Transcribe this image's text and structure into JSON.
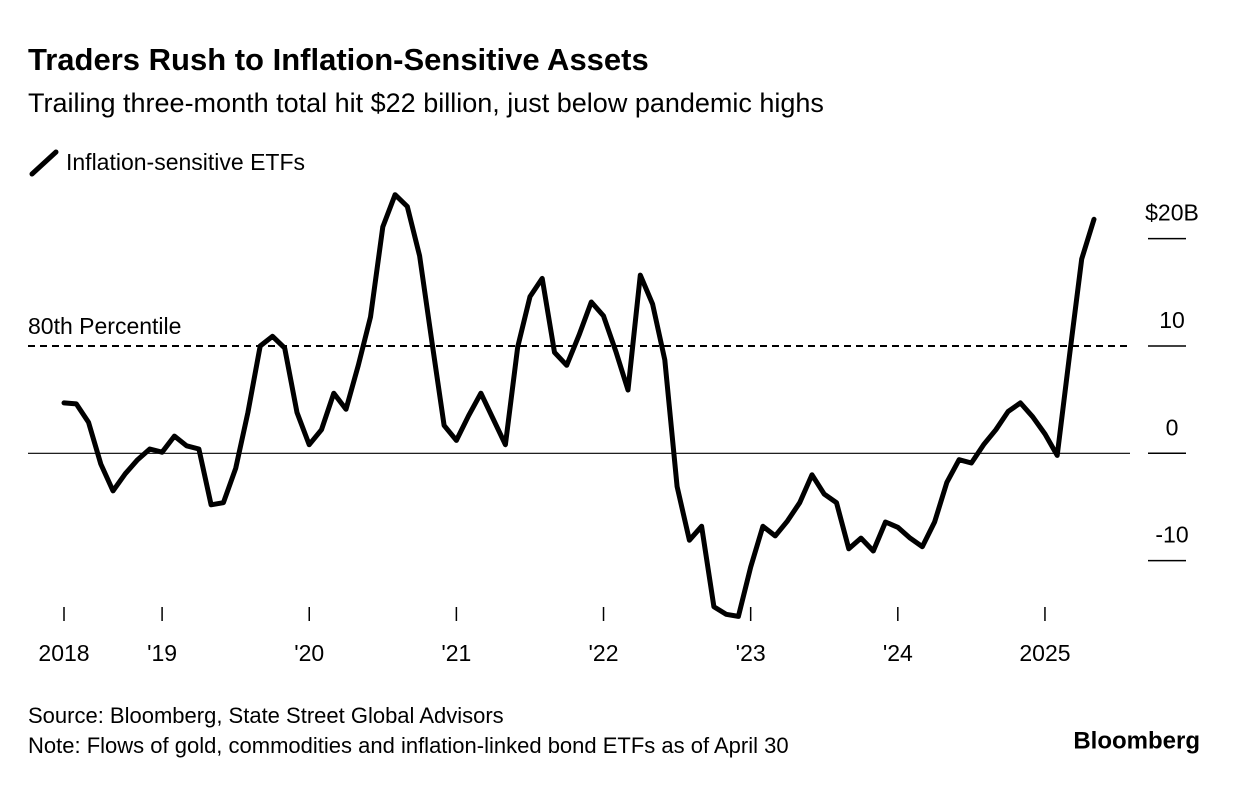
{
  "chart_data": {
    "type": "line",
    "title": "Traders Rush to Inflation-Sensitive Assets",
    "subtitle": "Trailing three-month total hit $22 billion, just below pandemic highs",
    "categories": [
      "2018",
      null,
      null,
      null,
      null,
      null,
      null,
      null,
      "'19",
      null,
      null,
      null,
      null,
      null,
      null,
      null,
      null,
      null,
      null,
      null,
      "'20",
      null,
      null,
      null,
      null,
      null,
      null,
      null,
      null,
      null,
      null,
      null,
      "'21",
      null,
      null,
      null,
      null,
      null,
      null,
      null,
      null,
      null,
      null,
      null,
      "'22",
      null,
      null,
      null,
      null,
      null,
      null,
      null,
      null,
      null,
      null,
      null,
      "'23",
      null,
      null,
      null,
      null,
      null,
      null,
      null,
      null,
      null,
      null,
      null,
      "'24",
      null,
      null,
      null,
      null,
      null,
      null,
      null,
      null,
      null,
      null,
      null,
      "2025",
      null,
      null,
      null,
      null
    ],
    "series": [
      {
        "name": "Inflation-sensitive ETFs",
        "color": "#000000",
        "values": [
          4.7,
          4.6,
          2.9,
          -1.0,
          -3.5,
          -1.9,
          -0.6,
          0.4,
          0.1,
          1.6,
          0.7,
          0.4,
          -4.8,
          -4.6,
          -1.4,
          3.8,
          10.0,
          10.9,
          9.8,
          3.8,
          0.8,
          2.2,
          5.6,
          4.1,
          8.2,
          12.7,
          21.1,
          24.1,
          23.0,
          18.4,
          10.4,
          2.6,
          1.2,
          3.5,
          5.6,
          3.2,
          0.8,
          9.9,
          14.6,
          16.3,
          9.4,
          8.2,
          11.0,
          14.1,
          12.8,
          9.5,
          5.9,
          16.6,
          13.9,
          8.7,
          -3.1,
          -8.1,
          -6.8,
          -14.3,
          -15.0,
          -15.2,
          -10.6,
          -6.8,
          -7.7,
          -6.3,
          -4.6,
          -2.0,
          -3.8,
          -4.6,
          -8.9,
          -7.9,
          -9.1,
          -6.4,
          -6.9,
          -7.9,
          -8.7,
          -6.4,
          -2.7,
          -0.6,
          -0.9,
          0.8,
          2.2,
          3.9,
          4.7,
          3.4,
          1.8,
          -0.2,
          9.1,
          18.1,
          21.8
        ]
      }
    ],
    "ylim": [
      -16,
      25
    ],
    "yticks": [
      -10,
      0,
      10,
      {
        "value": 20,
        "label": "$20B"
      }
    ],
    "zero_line": true,
    "reference_lines": [
      {
        "value": 10,
        "label": "80th Percentile",
        "style": "dashed"
      }
    ],
    "source": "Source: Bloomberg, State Street Global Advisors",
    "note": "Note: Flows of gold, commodities and inflation-linked bond ETFs as of April 30",
    "brand": "Bloomberg"
  }
}
